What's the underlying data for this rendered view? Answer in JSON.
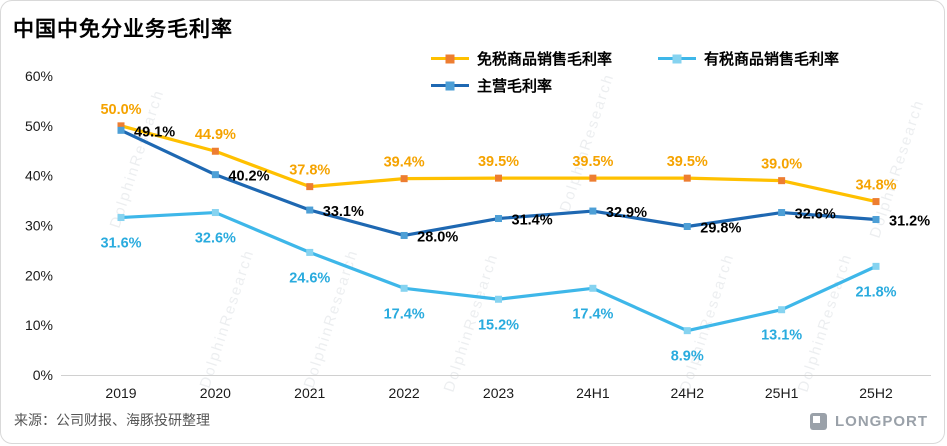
{
  "title": "中国中免分业务毛利率",
  "source": "来源：公司财报、海豚投研整理",
  "brand": "LONGPORT",
  "watermark": "DolphinResearch",
  "chart_data": {
    "type": "line",
    "title": "中国中免分业务毛利率",
    "xlabel": "",
    "ylabel": "",
    "categories": [
      "2019",
      "2020",
      "2021",
      "2022",
      "2023",
      "24H1",
      "24H2",
      "25H1",
      "25H2"
    ],
    "series": [
      {
        "name": "免税商品销售毛利率",
        "values": [
          50.0,
          44.9,
          37.8,
          39.4,
          39.5,
          39.5,
          39.5,
          39.0,
          34.8
        ],
        "line_color": "#FFC000",
        "marker_color": "#ED7D31",
        "label_color": "#F5A300",
        "label_position": "above"
      },
      {
        "name": "有税商品销售毛利率",
        "values": [
          31.6,
          32.6,
          24.6,
          17.4,
          15.2,
          17.4,
          8.9,
          13.1,
          21.8
        ],
        "line_color": "#3EB7E9",
        "marker_color": "#86D3F0",
        "label_color": "#29ABDE",
        "label_position": "below"
      },
      {
        "name": "主营毛利率",
        "values": [
          49.1,
          40.2,
          33.1,
          28.0,
          31.4,
          32.9,
          29.8,
          32.6,
          31.2
        ],
        "line_color": "#1E68B2",
        "marker_color": "#4D9FD6",
        "label_color": "#000000",
        "label_position": "right"
      }
    ],
    "ylim": [
      0,
      60
    ],
    "ytick_step": 10,
    "ytick_labels": [
      "0%",
      "10%",
      "20%",
      "30%",
      "40%",
      "50%",
      "60%"
    ],
    "grid": false,
    "legend_position": "top",
    "legend_rows": [
      [
        0,
        1
      ],
      [
        2
      ]
    ]
  }
}
